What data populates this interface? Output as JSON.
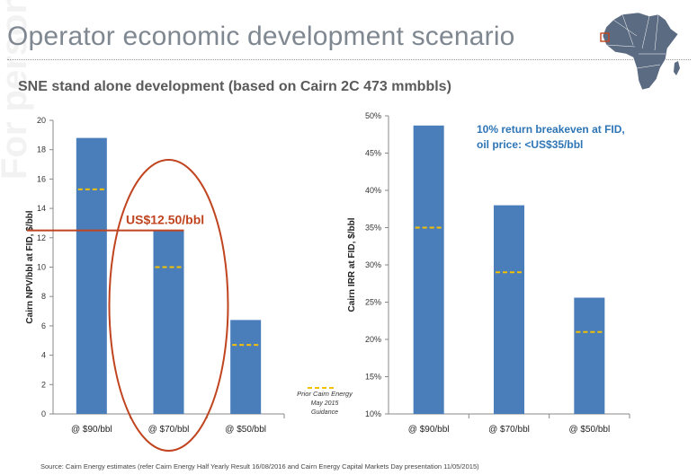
{
  "slide": {
    "title": "Operator economic development scenario",
    "subtitle": "SNE stand alone development (based on Cairn 2C 473 mmbbls)",
    "footnote": "Source: Cairn Energy estimates (refer Cairn Energy Half Yearly Result 16/08/2016 and Cairn Energy Capital Markets Day presentation 11/05/2015)"
  },
  "colors": {
    "bar": "#4a7ebb",
    "guidance": "#f5c000",
    "highlight": "#c0441f",
    "axis_text": "#333333",
    "annotation": "#2e75b6"
  },
  "chart_data": [
    {
      "type": "bar",
      "ylabel": "Cairn NPV/bbl at FID, $/bbl",
      "categories": [
        "@ $90/bbl",
        "@ $70/bbl",
        "@ $50/bbl"
      ],
      "values": [
        18.8,
        12.5,
        6.4
      ],
      "guidance": [
        15.3,
        10.0,
        4.7
      ],
      "ylim": [
        0,
        20
      ],
      "yticks": [
        "0",
        "2",
        "4",
        "6",
        "8",
        "10",
        "12",
        "14",
        "16",
        "18",
        "20"
      ],
      "ytick_values": [
        0,
        2,
        4,
        6,
        8,
        10,
        12,
        14,
        16,
        18,
        20
      ],
      "annotation": "US$12.50/bbl",
      "annotation_value": 12.5,
      "highlighted_category": "@ $70/bbl",
      "legend": {
        "label_line1": "Prior Cairn Energy",
        "label_line2": "May 2015",
        "label_line3": "Guidance"
      }
    },
    {
      "type": "bar",
      "ylabel": "Cairn IRR at FID, $/bbl",
      "categories": [
        "@ $90/bbl",
        "@ $70/bbl",
        "@ $50/bbl"
      ],
      "values": [
        48.7,
        38.0,
        25.6
      ],
      "guidance": [
        35.0,
        29.0,
        21.0
      ],
      "ylim": [
        10,
        50
      ],
      "yticks": [
        "10%",
        "15%",
        "20%",
        "25%",
        "30%",
        "35%",
        "40%",
        "45%",
        "50%"
      ],
      "ytick_values": [
        10,
        15,
        20,
        25,
        30,
        35,
        40,
        45,
        50
      ],
      "annotation_line1": "10% return breakeven at FID,",
      "annotation_line2": "oil price: <US$35/bbl"
    }
  ]
}
